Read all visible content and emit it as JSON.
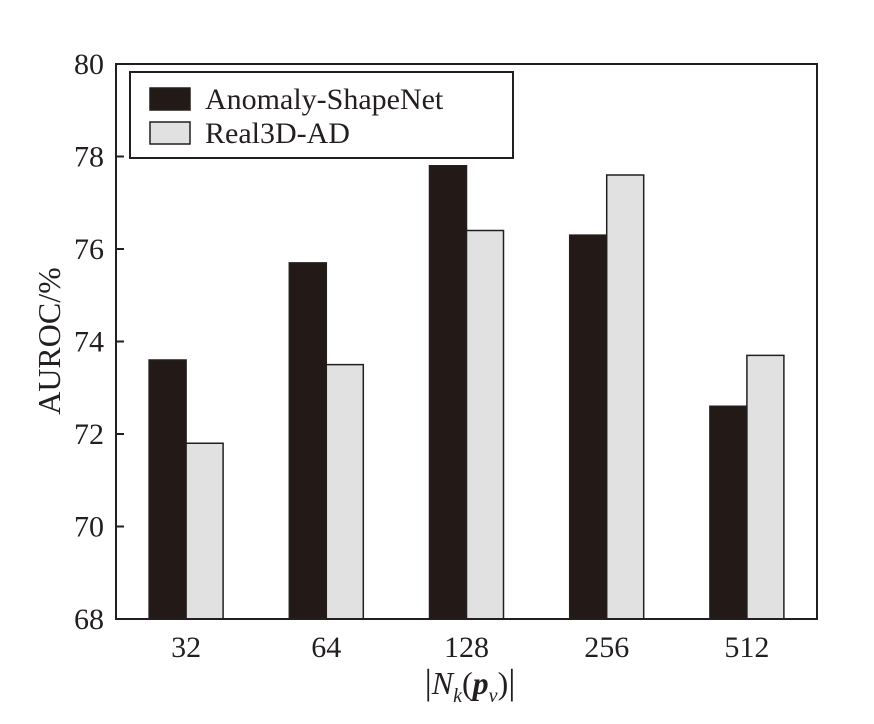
{
  "chart_data": {
    "type": "bar",
    "title": "",
    "xlabel": "|N_k(p_v)|",
    "xlabel_parts": {
      "open": "|",
      "N": "N",
      "k": "k",
      "lparen": "(",
      "p": "p",
      "v": "v",
      "rparen": ")",
      "close": "|"
    },
    "ylabel": "AUROC/%",
    "ylim": [
      68,
      80
    ],
    "yticks": [
      68,
      70,
      72,
      74,
      76,
      78,
      80
    ],
    "categories": [
      "32",
      "64",
      "128",
      "256",
      "512"
    ],
    "series": [
      {
        "name": "Anomaly-ShapeNet",
        "color": "#231a18",
        "values": [
          73.6,
          75.7,
          77.8,
          76.3,
          72.6
        ]
      },
      {
        "name": "Real3D-AD",
        "color": "#e2e1e1",
        "values": [
          71.8,
          73.5,
          76.4,
          77.6,
          73.7
        ]
      }
    ],
    "legend_position": "top-left",
    "grid": false
  }
}
